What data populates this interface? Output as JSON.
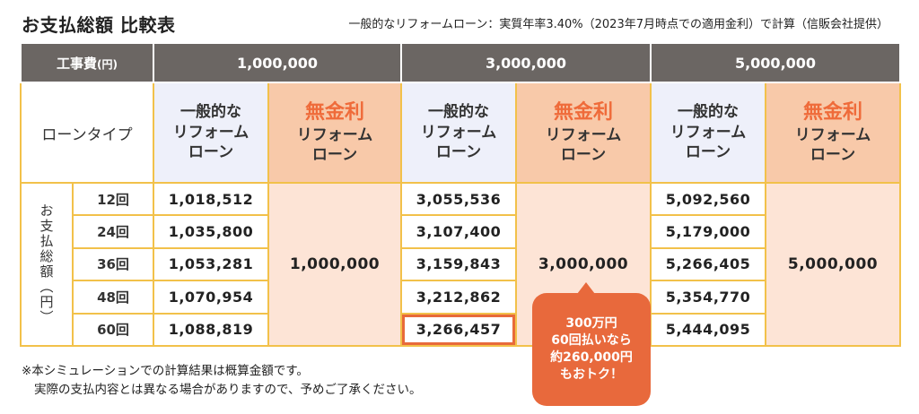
{
  "title": "お支払総額 比較表",
  "subtitle": "一般的なリフォームローン：実質年率3.40%（2023年7月時点での適用金利）で計算（信販会社提供）",
  "table": {
    "cost_header_main": "工事費",
    "cost_header_unit": "(円)",
    "costs": [
      "1,000,000",
      "3,000,000",
      "5,000,000"
    ],
    "loan_type_label": "ローンタイプ",
    "general_loan": [
      "一般的な",
      "リフォーム",
      "ローン"
    ],
    "nofee_loan": {
      "emphasis": "無金利",
      "line2": "リフォーム",
      "line3": "ローン"
    },
    "side_label": "お支払総額（円）",
    "rows": [
      {
        "term": "12回",
        "v1": "1,018,512",
        "v3": "3,055,536",
        "v5": "5,092,560"
      },
      {
        "term": "24回",
        "v1": "1,035,800",
        "v3": "3,107,400",
        "v5": "5,179,000"
      },
      {
        "term": "36回",
        "v1": "1,053,281",
        "v3": "3,159,843",
        "v5": "5,266,405"
      },
      {
        "term": "48回",
        "v1": "1,070,954",
        "v3": "3,212,862",
        "v5": "5,354,770"
      },
      {
        "term": "60回",
        "v1": "1,088,819",
        "v3": "3,266,457",
        "v5": "5,444,095"
      }
    ],
    "nofee_totals": [
      "1,000,000",
      "3,000,000",
      "5,000,000"
    ]
  },
  "callout": [
    "300万円",
    "60回払いなら",
    "約260,000円",
    "もおトク！"
  ],
  "notes": [
    "※本シミュレーションでの計算結果は概算金額です。",
    "実際の支払内容とは異なる場合がありますので、予めご了承ください。"
  ],
  "colors": {
    "header_gray": "#6b6663",
    "border_yellow": "#f2c14a",
    "general_bg": "#eef0fa",
    "nofee_bg": "#f8c9a9",
    "nofee_body_bg": "#fde4d6",
    "accent_orange": "#e8693c"
  }
}
